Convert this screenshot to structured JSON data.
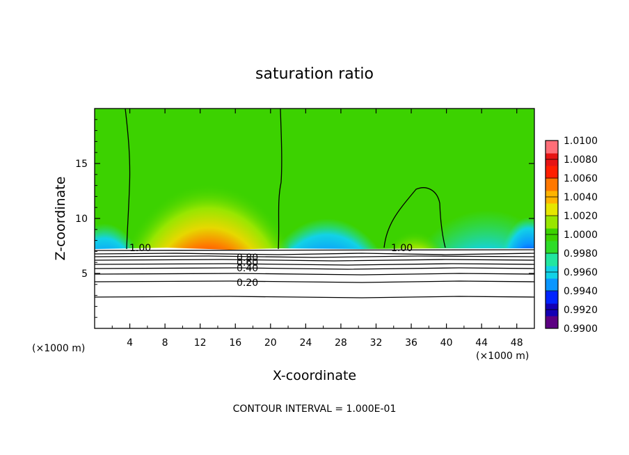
{
  "chart_data": {
    "type": "heatmap",
    "title": "saturation ratio",
    "xlabel": "X-coordinate",
    "ylabel": "Z-coordinate",
    "x_unit_note": "(×1000 m)",
    "x_unit_note_right": "(×1000 m)",
    "xlim": [
      0,
      50
    ],
    "ylim": [
      0,
      20
    ],
    "xticks": [
      "4",
      "8",
      "12",
      "16",
      "20",
      "24",
      "28",
      "32",
      "36",
      "40",
      "44",
      "48"
    ],
    "yticks": [
      "5",
      "10",
      "15"
    ],
    "colorbar": {
      "min": 0.99,
      "max": 1.01,
      "labels": [
        "1.0100",
        "1.0080",
        "1.0060",
        "1.0040",
        "1.0020",
        "1.0000",
        "0.9980",
        "0.9960",
        "0.9940",
        "0.9920",
        "0.9900"
      ],
      "colors": [
        "#5c0082",
        "#1400b4",
        "#0024ff",
        "#0a96ff",
        "#12d2e6",
        "#22e6a0",
        "#2edc28",
        "#3cd200",
        "#98e600",
        "#e6e600",
        "#ffb400",
        "#ff7800",
        "#ff1e00",
        "#e61414",
        "#ff6e78"
      ]
    },
    "contour_labels": [
      "1.00",
      "1.00",
      "0.80",
      "0.60",
      "0.40",
      "0.20"
    ],
    "footer": "CONTOUR INTERVAL = 1.000E-01",
    "grid": false
  }
}
